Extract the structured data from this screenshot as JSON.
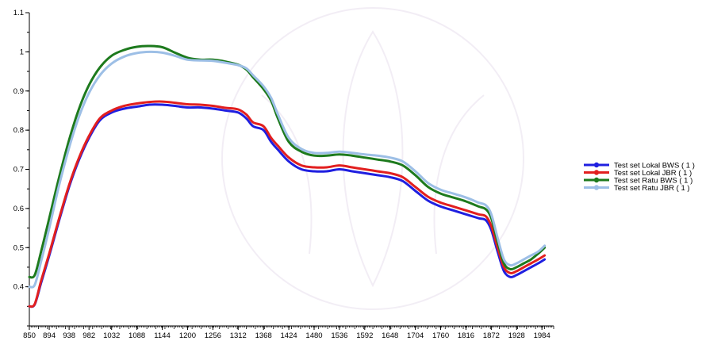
{
  "chart_data": {
    "type": "line",
    "title": "",
    "xlabel": "",
    "ylabel": "",
    "xlim": [
      850,
      2010
    ],
    "ylim": [
      0.3,
      1.1
    ],
    "x_ticks": [
      850,
      894,
      938,
      982,
      1032,
      1088,
      1144,
      1200,
      1256,
      1312,
      1368,
      1424,
      1480,
      1536,
      1592,
      1648,
      1704,
      1760,
      1816,
      1872,
      1928,
      1984
    ],
    "y_ticks": [
      0.4,
      0.5,
      0.6,
      0.7,
      0.8,
      0.9,
      1,
      1.1
    ],
    "grid": false,
    "legend_position": "right",
    "series": [
      {
        "name": "Test set Lokal BWS ( 1 )",
        "color": "#1f1fe0",
        "x": [
          850,
          862,
          876,
          894,
          916,
          938,
          960,
          982,
          1006,
          1032,
          1060,
          1088,
          1116,
          1144,
          1172,
          1200,
          1228,
          1256,
          1284,
          1312,
          1330,
          1345,
          1368,
          1385,
          1400,
          1424,
          1452,
          1480,
          1508,
          1536,
          1564,
          1592,
          1620,
          1648,
          1676,
          1704,
          1732,
          1760,
          1788,
          1816,
          1844,
          1860,
          1872,
          1886,
          1900,
          1914,
          1928,
          1944,
          1960,
          1976,
          1990
        ],
        "values": [
          0.35,
          0.355,
          0.41,
          0.48,
          0.57,
          0.655,
          0.725,
          0.78,
          0.825,
          0.845,
          0.855,
          0.86,
          0.865,
          0.865,
          0.862,
          0.858,
          0.858,
          0.855,
          0.85,
          0.845,
          0.83,
          0.81,
          0.8,
          0.77,
          0.75,
          0.72,
          0.7,
          0.695,
          0.695,
          0.7,
          0.695,
          0.69,
          0.685,
          0.68,
          0.67,
          0.645,
          0.62,
          0.605,
          0.595,
          0.585,
          0.575,
          0.57,
          0.545,
          0.49,
          0.44,
          0.425,
          0.43,
          0.44,
          0.45,
          0.46,
          0.47
        ]
      },
      {
        "name": "Test set Lokal JBR ( 1 )",
        "color": "#e21f1f",
        "x": [
          850,
          862,
          876,
          894,
          916,
          938,
          960,
          982,
          1006,
          1032,
          1060,
          1088,
          1116,
          1144,
          1172,
          1200,
          1228,
          1256,
          1284,
          1312,
          1330,
          1345,
          1368,
          1385,
          1400,
          1424,
          1452,
          1480,
          1508,
          1536,
          1564,
          1592,
          1620,
          1648,
          1676,
          1704,
          1732,
          1760,
          1788,
          1816,
          1844,
          1860,
          1872,
          1886,
          1900,
          1914,
          1928,
          1944,
          1960,
          1976,
          1990
        ],
        "values": [
          0.35,
          0.356,
          0.415,
          0.485,
          0.575,
          0.66,
          0.73,
          0.785,
          0.83,
          0.85,
          0.862,
          0.868,
          0.872,
          0.873,
          0.87,
          0.866,
          0.865,
          0.862,
          0.857,
          0.853,
          0.84,
          0.82,
          0.81,
          0.78,
          0.76,
          0.73,
          0.71,
          0.705,
          0.705,
          0.71,
          0.705,
          0.7,
          0.695,
          0.69,
          0.68,
          0.655,
          0.63,
          0.615,
          0.605,
          0.595,
          0.585,
          0.58,
          0.555,
          0.5,
          0.45,
          0.435,
          0.44,
          0.45,
          0.46,
          0.47,
          0.48
        ]
      },
      {
        "name": "Test set Ratu BWS ( 1 )",
        "color": "#1d7a1d",
        "x": [
          850,
          862,
          876,
          894,
          916,
          938,
          960,
          982,
          1006,
          1032,
          1060,
          1088,
          1116,
          1144,
          1172,
          1200,
          1228,
          1256,
          1284,
          1312,
          1330,
          1345,
          1368,
          1385,
          1400,
          1424,
          1452,
          1480,
          1508,
          1536,
          1564,
          1592,
          1620,
          1648,
          1676,
          1704,
          1732,
          1760,
          1788,
          1816,
          1844,
          1860,
          1872,
          1886,
          1900,
          1914,
          1928,
          1944,
          1960,
          1976,
          1990
        ],
        "values": [
          0.425,
          0.43,
          0.49,
          0.575,
          0.68,
          0.775,
          0.855,
          0.915,
          0.96,
          0.99,
          1.005,
          1.013,
          1.015,
          1.012,
          0.998,
          0.985,
          0.98,
          0.98,
          0.975,
          0.967,
          0.955,
          0.935,
          0.905,
          0.875,
          0.83,
          0.77,
          0.745,
          0.735,
          0.735,
          0.738,
          0.735,
          0.73,
          0.725,
          0.72,
          0.71,
          0.685,
          0.655,
          0.638,
          0.628,
          0.618,
          0.605,
          0.598,
          0.575,
          0.515,
          0.46,
          0.445,
          0.45,
          0.46,
          0.47,
          0.485,
          0.5
        ]
      },
      {
        "name": "Test set Ratu JBR ( 1 )",
        "color": "#9dbfe6",
        "x": [
          850,
          862,
          876,
          894,
          916,
          938,
          960,
          982,
          1006,
          1032,
          1060,
          1088,
          1116,
          1144,
          1172,
          1200,
          1228,
          1256,
          1284,
          1312,
          1330,
          1345,
          1368,
          1385,
          1400,
          1424,
          1452,
          1480,
          1508,
          1536,
          1564,
          1592,
          1620,
          1648,
          1676,
          1704,
          1732,
          1760,
          1788,
          1816,
          1844,
          1860,
          1872,
          1886,
          1900,
          1914,
          1928,
          1944,
          1960,
          1976,
          1990
        ],
        "values": [
          0.4,
          0.405,
          0.465,
          0.55,
          0.66,
          0.755,
          0.835,
          0.895,
          0.94,
          0.97,
          0.988,
          0.997,
          1.0,
          0.998,
          0.99,
          0.98,
          0.978,
          0.977,
          0.972,
          0.966,
          0.958,
          0.94,
          0.912,
          0.882,
          0.84,
          0.78,
          0.752,
          0.742,
          0.742,
          0.745,
          0.742,
          0.738,
          0.735,
          0.73,
          0.72,
          0.695,
          0.665,
          0.648,
          0.638,
          0.628,
          0.615,
          0.608,
          0.585,
          0.525,
          0.47,
          0.455,
          0.46,
          0.47,
          0.48,
          0.49,
          0.505
        ]
      }
    ]
  }
}
